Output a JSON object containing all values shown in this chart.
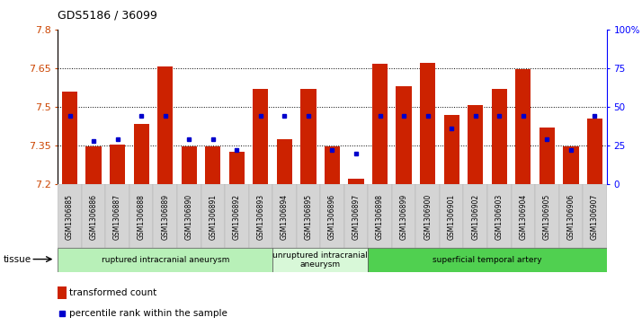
{
  "title": "GDS5186 / 36099",
  "samples": [
    "GSM1306885",
    "GSM1306886",
    "GSM1306887",
    "GSM1306888",
    "GSM1306889",
    "GSM1306890",
    "GSM1306891",
    "GSM1306892",
    "GSM1306893",
    "GSM1306894",
    "GSM1306895",
    "GSM1306896",
    "GSM1306897",
    "GSM1306898",
    "GSM1306899",
    "GSM1306900",
    "GSM1306901",
    "GSM1306902",
    "GSM1306903",
    "GSM1306904",
    "GSM1306905",
    "GSM1306906",
    "GSM1306907"
  ],
  "bar_values": [
    7.56,
    7.345,
    7.355,
    7.435,
    7.655,
    7.345,
    7.345,
    7.325,
    7.57,
    7.375,
    7.57,
    7.345,
    7.22,
    7.665,
    7.58,
    7.67,
    7.47,
    7.505,
    7.57,
    7.645,
    7.42,
    7.345,
    7.455
  ],
  "percentile_values": [
    44,
    28,
    29,
    44,
    44,
    29,
    29,
    22,
    44,
    44,
    44,
    22,
    20,
    44,
    44,
    44,
    36,
    44,
    44,
    44,
    29,
    22,
    44
  ],
  "ymin": 7.2,
  "ymax": 7.8,
  "yticks": [
    7.2,
    7.35,
    7.5,
    7.65,
    7.8
  ],
  "right_ytick_labels": [
    "0",
    "25",
    "50",
    "75",
    "100%"
  ],
  "right_ytick_vals": [
    0,
    25,
    50,
    75,
    100
  ],
  "groups": [
    {
      "label": "ruptured intracranial aneurysm",
      "start": 0,
      "end": 9,
      "color": "#b8f0b8"
    },
    {
      "label": "unruptured intracranial\naneurysm",
      "start": 9,
      "end": 13,
      "color": "#d8f8d8"
    },
    {
      "label": "superficial temporal artery",
      "start": 13,
      "end": 23,
      "color": "#50d050"
    }
  ],
  "bar_color": "#cc2200",
  "dot_color": "#0000cc",
  "tick_bg": "#d4d4d4",
  "plot_bg": "#ffffff"
}
